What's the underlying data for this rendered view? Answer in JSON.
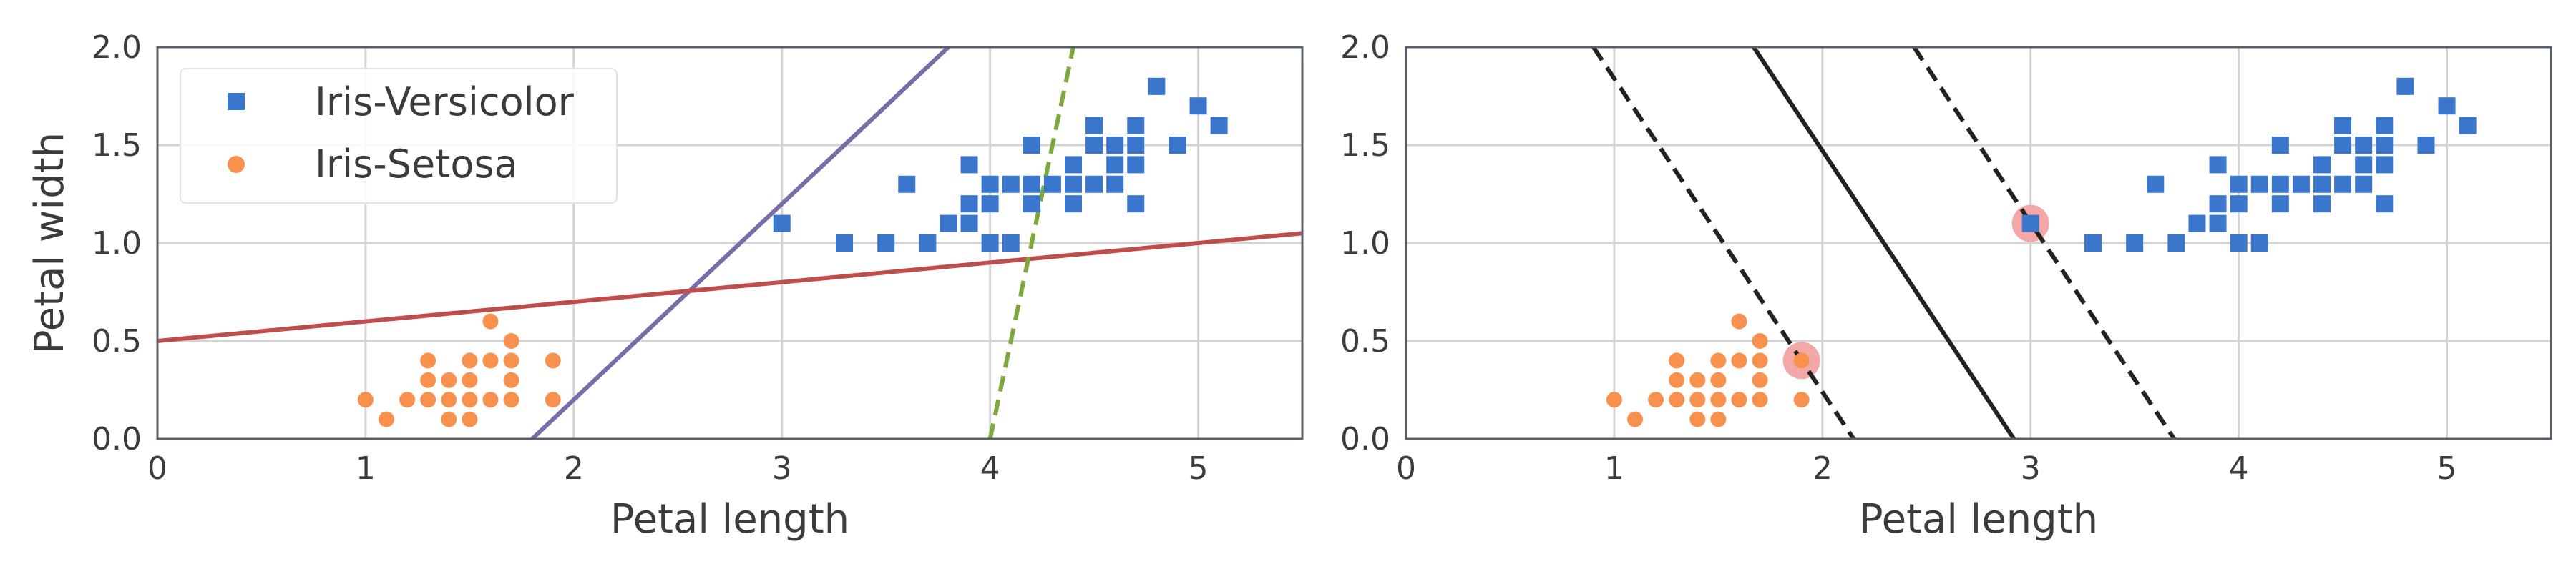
{
  "chart_data": [
    {
      "type": "scatter",
      "xlabel": "Petal length",
      "ylabel": "Petal width",
      "xlim": [
        0,
        5.5
      ],
      "ylim": [
        0,
        2.0
      ],
      "xticks": [
        "0",
        "1",
        "2",
        "3",
        "4",
        "5"
      ],
      "yticks": [
        "0.0",
        "0.5",
        "1.0",
        "1.5",
        "2.0"
      ],
      "grid": true,
      "legend": {
        "placement": "upper-left",
        "entries": [
          "Iris-Versicolor",
          "Iris-Setosa"
        ]
      },
      "series": [
        {
          "name": "Iris-Versicolor",
          "marker": "square",
          "color": "#3a76cc",
          "points": [
            [
              3.0,
              1.1
            ],
            [
              3.3,
              1.0
            ],
            [
              3.5,
              1.0
            ],
            [
              3.6,
              1.3
            ],
            [
              3.7,
              1.0
            ],
            [
              3.8,
              1.1
            ],
            [
              3.9,
              1.1
            ],
            [
              3.9,
              1.2
            ],
            [
              3.9,
              1.4
            ],
            [
              4.0,
              1.0
            ],
            [
              4.0,
              1.2
            ],
            [
              4.0,
              1.3
            ],
            [
              4.1,
              1.0
            ],
            [
              4.1,
              1.3
            ],
            [
              4.2,
              1.2
            ],
            [
              4.2,
              1.3
            ],
            [
              4.2,
              1.5
            ],
            [
              4.3,
              1.3
            ],
            [
              4.4,
              1.2
            ],
            [
              4.4,
              1.3
            ],
            [
              4.4,
              1.4
            ],
            [
              4.5,
              1.3
            ],
            [
              4.5,
              1.5
            ],
            [
              4.5,
              1.6
            ],
            [
              4.6,
              1.3
            ],
            [
              4.6,
              1.4
            ],
            [
              4.6,
              1.5
            ],
            [
              4.7,
              1.2
            ],
            [
              4.7,
              1.4
            ],
            [
              4.7,
              1.5
            ],
            [
              4.7,
              1.6
            ],
            [
              4.8,
              1.8
            ],
            [
              4.9,
              1.5
            ],
            [
              5.0,
              1.7
            ],
            [
              5.1,
              1.6
            ]
          ]
        },
        {
          "name": "Iris-Setosa",
          "marker": "circle",
          "color": "#f9914e",
          "points": [
            [
              1.0,
              0.2
            ],
            [
              1.1,
              0.1
            ],
            [
              1.2,
              0.2
            ],
            [
              1.3,
              0.2
            ],
            [
              1.3,
              0.3
            ],
            [
              1.3,
              0.4
            ],
            [
              1.4,
              0.1
            ],
            [
              1.4,
              0.2
            ],
            [
              1.4,
              0.3
            ],
            [
              1.5,
              0.1
            ],
            [
              1.5,
              0.2
            ],
            [
              1.5,
              0.3
            ],
            [
              1.5,
              0.4
            ],
            [
              1.6,
              0.2
            ],
            [
              1.6,
              0.4
            ],
            [
              1.6,
              0.6
            ],
            [
              1.7,
              0.2
            ],
            [
              1.7,
              0.3
            ],
            [
              1.7,
              0.4
            ],
            [
              1.7,
              0.5
            ],
            [
              1.9,
              0.2
            ],
            [
              1.9,
              0.4
            ]
          ]
        }
      ],
      "lines": [
        {
          "color": "#7a6ca8",
          "style": "solid",
          "from": [
            1.8,
            0.0
          ],
          "to": [
            3.8,
            2.0
          ]
        },
        {
          "color": "#c04d4d",
          "style": "solid",
          "from": [
            0.0,
            0.5
          ],
          "to": [
            5.5,
            1.05
          ]
        },
        {
          "color": "#7ea83c",
          "style": "dashed",
          "from": [
            4.0,
            0.0
          ],
          "to": [
            4.4,
            2.0
          ]
        }
      ]
    },
    {
      "type": "scatter",
      "xlabel": "Petal length",
      "ylabel": "",
      "xlim": [
        0,
        5.5
      ],
      "ylim": [
        0,
        2.0
      ],
      "xticks": [
        "0",
        "1",
        "2",
        "3",
        "4",
        "5"
      ],
      "yticks": [
        "0.0",
        "0.5",
        "1.0",
        "1.5",
        "2.0"
      ],
      "grid": true,
      "series": [
        {
          "name": "Iris-Versicolor",
          "marker": "square",
          "color": "#3a76cc",
          "points": [
            [
              3.0,
              1.1
            ],
            [
              3.3,
              1.0
            ],
            [
              3.5,
              1.0
            ],
            [
              3.6,
              1.3
            ],
            [
              3.7,
              1.0
            ],
            [
              3.8,
              1.1
            ],
            [
              3.9,
              1.1
            ],
            [
              3.9,
              1.2
            ],
            [
              3.9,
              1.4
            ],
            [
              4.0,
              1.0
            ],
            [
              4.0,
              1.2
            ],
            [
              4.0,
              1.3
            ],
            [
              4.1,
              1.0
            ],
            [
              4.1,
              1.3
            ],
            [
              4.2,
              1.2
            ],
            [
              4.2,
              1.3
            ],
            [
              4.2,
              1.5
            ],
            [
              4.3,
              1.3
            ],
            [
              4.4,
              1.2
            ],
            [
              4.4,
              1.3
            ],
            [
              4.4,
              1.4
            ],
            [
              4.5,
              1.3
            ],
            [
              4.5,
              1.5
            ],
            [
              4.5,
              1.6
            ],
            [
              4.6,
              1.3
            ],
            [
              4.6,
              1.4
            ],
            [
              4.6,
              1.5
            ],
            [
              4.7,
              1.2
            ],
            [
              4.7,
              1.4
            ],
            [
              4.7,
              1.5
            ],
            [
              4.7,
              1.6
            ],
            [
              4.8,
              1.8
            ],
            [
              4.9,
              1.5
            ],
            [
              5.0,
              1.7
            ],
            [
              5.1,
              1.6
            ]
          ]
        },
        {
          "name": "Iris-Setosa",
          "marker": "circle",
          "color": "#f9914e",
          "points": [
            [
              1.0,
              0.2
            ],
            [
              1.1,
              0.1
            ],
            [
              1.2,
              0.2
            ],
            [
              1.3,
              0.2
            ],
            [
              1.3,
              0.3
            ],
            [
              1.3,
              0.4
            ],
            [
              1.4,
              0.1
            ],
            [
              1.4,
              0.2
            ],
            [
              1.4,
              0.3
            ],
            [
              1.5,
              0.1
            ],
            [
              1.5,
              0.2
            ],
            [
              1.5,
              0.3
            ],
            [
              1.5,
              0.4
            ],
            [
              1.6,
              0.2
            ],
            [
              1.6,
              0.4
            ],
            [
              1.6,
              0.6
            ],
            [
              1.7,
              0.2
            ],
            [
              1.7,
              0.3
            ],
            [
              1.7,
              0.4
            ],
            [
              1.7,
              0.5
            ],
            [
              1.9,
              0.2
            ],
            [
              1.9,
              0.4
            ]
          ]
        }
      ],
      "support_vectors": {
        "color": "#f4a7a7",
        "points": [
          [
            1.9,
            0.4
          ],
          [
            3.0,
            1.1
          ]
        ]
      },
      "lines": [
        {
          "color": "#222222",
          "style": "solid",
          "from": [
            1.67,
            2.0
          ],
          "to": [
            2.92,
            0.0
          ]
        },
        {
          "color": "#222222",
          "style": "dashed",
          "from": [
            0.9,
            2.0
          ],
          "to": [
            2.15,
            0.0
          ]
        },
        {
          "color": "#222222",
          "style": "dashed",
          "from": [
            2.44,
            2.0
          ],
          "to": [
            3.69,
            0.0
          ]
        }
      ]
    }
  ]
}
